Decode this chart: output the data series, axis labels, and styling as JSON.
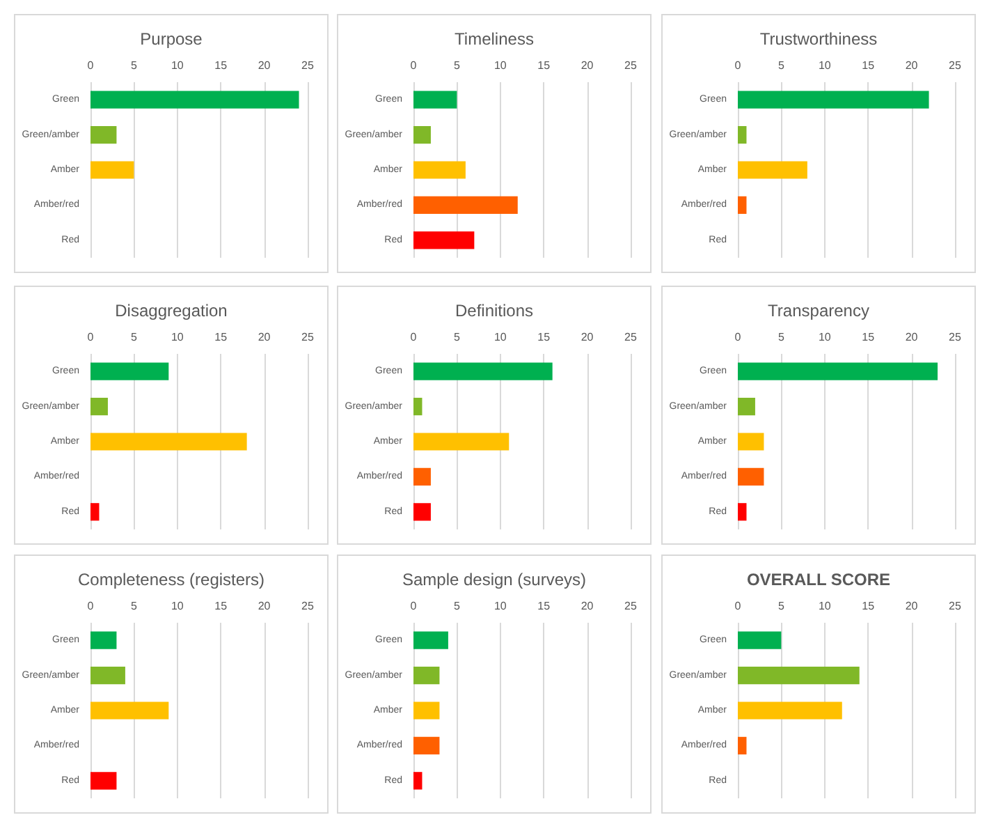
{
  "chart_data": [
    {
      "type": "bar",
      "orientation": "horizontal",
      "title": "Purpose",
      "categories": [
        "Green",
        "Green/amber",
        "Amber",
        "Amber/red",
        "Red"
      ],
      "values": [
        24,
        3,
        5,
        0,
        0
      ],
      "colors": [
        "#00b050",
        "#80b828",
        "#ffc000",
        "#ff6000",
        "#ff0000"
      ],
      "xlim": [
        0,
        25
      ],
      "xticks": [
        0,
        5,
        10,
        15,
        20,
        25
      ],
      "grid": "x"
    },
    {
      "type": "bar",
      "orientation": "horizontal",
      "title": "Timeliness",
      "categories": [
        "Green",
        "Green/amber",
        "Amber",
        "Amber/red",
        "Red"
      ],
      "values": [
        5,
        2,
        6,
        12,
        7
      ],
      "colors": [
        "#00b050",
        "#80b828",
        "#ffc000",
        "#ff6000",
        "#ff0000"
      ],
      "xlim": [
        0,
        25
      ],
      "xticks": [
        0,
        5,
        10,
        15,
        20,
        25
      ],
      "grid": "x"
    },
    {
      "type": "bar",
      "orientation": "horizontal",
      "title": "Trustworthiness",
      "categories": [
        "Green",
        "Green/amber",
        "Amber",
        "Amber/red",
        "Red"
      ],
      "values": [
        22,
        1,
        8,
        1,
        0
      ],
      "colors": [
        "#00b050",
        "#80b828",
        "#ffc000",
        "#ff6000",
        "#ff0000"
      ],
      "xlim": [
        0,
        25
      ],
      "xticks": [
        0,
        5,
        10,
        15,
        20,
        25
      ],
      "grid": "x"
    },
    {
      "type": "bar",
      "orientation": "horizontal",
      "title": "Disaggregation",
      "categories": [
        "Green",
        "Green/amber",
        "Amber",
        "Amber/red",
        "Red"
      ],
      "values": [
        9,
        2,
        18,
        0,
        1
      ],
      "colors": [
        "#00b050",
        "#80b828",
        "#ffc000",
        "#ff6000",
        "#ff0000"
      ],
      "xlim": [
        0,
        25
      ],
      "xticks": [
        0,
        5,
        10,
        15,
        20,
        25
      ],
      "grid": "x"
    },
    {
      "type": "bar",
      "orientation": "horizontal",
      "title": "Definitions",
      "categories": [
        "Green",
        "Green/amber",
        "Amber",
        "Amber/red",
        "Red"
      ],
      "values": [
        16,
        1,
        11,
        2,
        2
      ],
      "colors": [
        "#00b050",
        "#80b828",
        "#ffc000",
        "#ff6000",
        "#ff0000"
      ],
      "xlim": [
        0,
        25
      ],
      "xticks": [
        0,
        5,
        10,
        15,
        20,
        25
      ],
      "grid": "x"
    },
    {
      "type": "bar",
      "orientation": "horizontal",
      "title": "Transparency",
      "categories": [
        "Green",
        "Green/amber",
        "Amber",
        "Amber/red",
        "Red"
      ],
      "values": [
        23,
        2,
        3,
        3,
        1
      ],
      "colors": [
        "#00b050",
        "#80b828",
        "#ffc000",
        "#ff6000",
        "#ff0000"
      ],
      "xlim": [
        0,
        25
      ],
      "xticks": [
        0,
        5,
        10,
        15,
        20,
        25
      ],
      "grid": "x"
    },
    {
      "type": "bar",
      "orientation": "horizontal",
      "title": "Completeness (registers)",
      "categories": [
        "Green",
        "Green/amber",
        "Amber",
        "Amber/red",
        "Red"
      ],
      "values": [
        3,
        4,
        9,
        0,
        3
      ],
      "colors": [
        "#00b050",
        "#80b828",
        "#ffc000",
        "#ff6000",
        "#ff0000"
      ],
      "xlim": [
        0,
        25
      ],
      "xticks": [
        0,
        5,
        10,
        15,
        20,
        25
      ],
      "grid": "x"
    },
    {
      "type": "bar",
      "orientation": "horizontal",
      "title": "Sample design (surveys)",
      "categories": [
        "Green",
        "Green/amber",
        "Amber",
        "Amber/red",
        "Red"
      ],
      "values": [
        4,
        3,
        3,
        3,
        1
      ],
      "colors": [
        "#00b050",
        "#80b828",
        "#ffc000",
        "#ff6000",
        "#ff0000"
      ],
      "xlim": [
        0,
        25
      ],
      "xticks": [
        0,
        5,
        10,
        15,
        20,
        25
      ],
      "grid": "x"
    },
    {
      "type": "bar",
      "orientation": "horizontal",
      "title": "OVERALL SCORE",
      "categories": [
        "Green",
        "Green/amber",
        "Amber",
        "Amber/red",
        "Red"
      ],
      "values": [
        5,
        14,
        12,
        1,
        0
      ],
      "colors": [
        "#00b050",
        "#80b828",
        "#ffc000",
        "#ff6000",
        "#ff0000"
      ],
      "xlim": [
        0,
        25
      ],
      "xticks": [
        0,
        5,
        10,
        15,
        20,
        25
      ],
      "grid": "x"
    }
  ]
}
